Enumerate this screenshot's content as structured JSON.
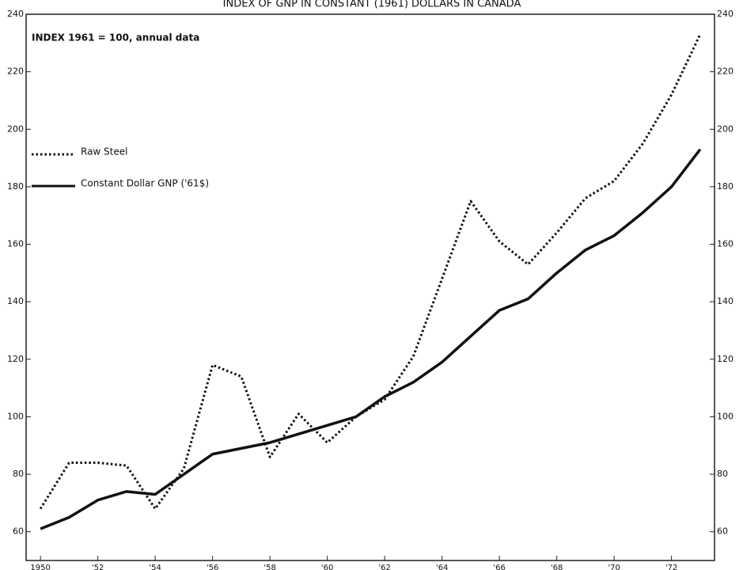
{
  "chart_data": {
    "type": "line",
    "title": "INDEX OF GNP IN CONSTANT (1961) DOLLARS IN CANADA",
    "annotation": "INDEX 1961 = 100, annual data",
    "x": [
      1950,
      1951,
      1952,
      1953,
      1954,
      1955,
      1956,
      1957,
      1958,
      1959,
      1960,
      1961,
      1962,
      1963,
      1964,
      1965,
      1966,
      1967,
      1968,
      1969,
      1970,
      1971,
      1972,
      1973
    ],
    "series": [
      {
        "name": "Raw Steel",
        "color": "#111111",
        "style": "dotted",
        "values": [
          68,
          84,
          84,
          83,
          68,
          82,
          118,
          114,
          86,
          101,
          91,
          100,
          106,
          121,
          148,
          175,
          161,
          153,
          164,
          176,
          182,
          195,
          212,
          233
        ]
      },
      {
        "name": "Constant Dollar GNP ('61$)",
        "color": "#111111",
        "style": "solid",
        "values": [
          61,
          65,
          71,
          74,
          73,
          80,
          87,
          89,
          91,
          94,
          97,
          100,
          107,
          112,
          119,
          128,
          137,
          141,
          150,
          158,
          163,
          171,
          180,
          193
        ]
      }
    ],
    "xlim": [
      1949.5,
      1973.5
    ],
    "xticks": [
      1950,
      {
        "value": 1952,
        "label": "'52"
      },
      {
        "value": 1954,
        "label": "'54"
      },
      {
        "value": 1956,
        "label": "'56"
      },
      {
        "value": 1958,
        "label": "'58"
      },
      {
        "value": 1960,
        "label": "'60"
      },
      {
        "value": 1962,
        "label": "'62"
      },
      {
        "value": 1964,
        "label": "'64"
      },
      {
        "value": 1966,
        "label": "'66"
      },
      {
        "value": 1968,
        "label": "'68"
      },
      {
        "value": 1970,
        "label": "'70"
      },
      {
        "value": 1972,
        "label": "'72"
      }
    ],
    "ylim": [
      50,
      240
    ],
    "yticks": [
      60,
      80,
      100,
      120,
      140,
      160,
      180,
      200,
      220,
      240
    ],
    "y2lim": [
      50,
      240
    ],
    "y2ticks": [
      60,
      80,
      100,
      120,
      140,
      160,
      180,
      200,
      220,
      240
    ],
    "grid": false
  }
}
